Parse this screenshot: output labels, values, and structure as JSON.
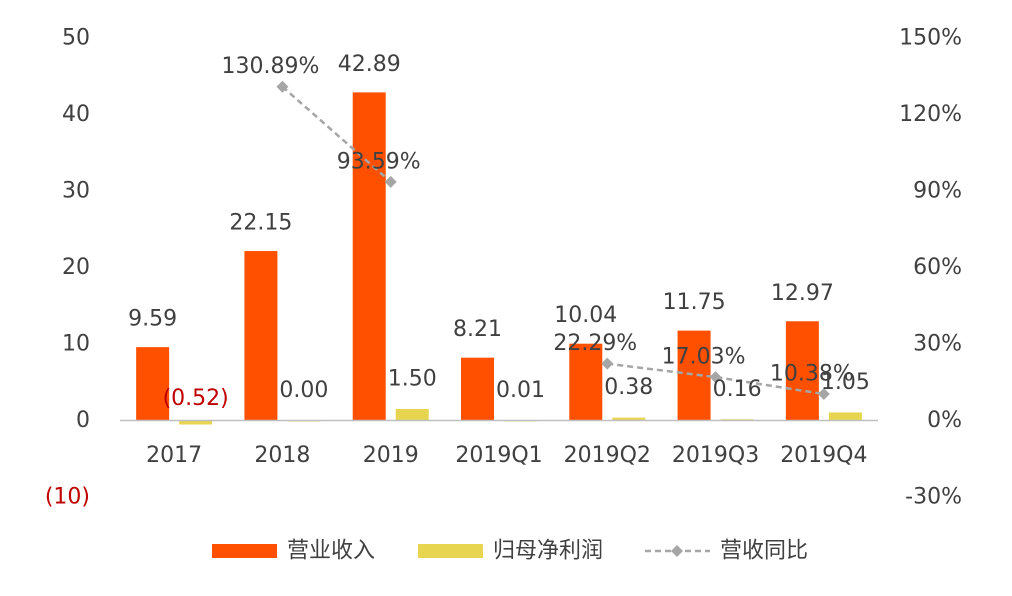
{
  "chart_data": {
    "type": "bar",
    "categories": [
      "2017",
      "2018",
      "2019",
      "2019Q1",
      "2019Q2",
      "2019Q3",
      "2019Q4"
    ],
    "series": [
      {
        "name": "营业收入",
        "axis": "left",
        "kind": "bar",
        "color": "#FF5000",
        "values": [
          9.59,
          22.15,
          42.89,
          8.21,
          10.04,
          11.75,
          12.97
        ],
        "labels": [
          "9.59",
          "22.15",
          "42.89",
          "8.21",
          "10.04",
          "11.75",
          "12.97"
        ]
      },
      {
        "name": "归母净利润",
        "axis": "left",
        "kind": "bar",
        "color": "#E8D54F",
        "values": [
          -0.52,
          0.0,
          1.5,
          0.01,
          0.38,
          0.16,
          1.05
        ],
        "labels": [
          "(0.52)",
          "0.00",
          "1.50",
          "0.01",
          "0.38",
          "0.16",
          "1.05"
        ],
        "negative_label_color": "#C00000"
      },
      {
        "name": "营收同比",
        "axis": "right",
        "kind": "line",
        "color": "#A6A6A6",
        "values": [
          null,
          130.89,
          93.59,
          null,
          22.29,
          17.03,
          10.38
        ],
        "labels": [
          null,
          "130.89%",
          "93.59%",
          null,
          "22.29%",
          "17.03%",
          "10.38%"
        ]
      }
    ],
    "y_left": {
      "range": [
        -10,
        50
      ],
      "ticks": [
        -10,
        0,
        10,
        20,
        30,
        40,
        50
      ],
      "tick_labels": [
        "(10)",
        "0",
        "10",
        "20",
        "30",
        "40",
        "50"
      ],
      "negative_color": "#C00000"
    },
    "y_right": {
      "range": [
        -30,
        150
      ],
      "ticks": [
        -30,
        0,
        30,
        60,
        90,
        120,
        150
      ],
      "tick_labels": [
        "-30%",
        "0%",
        "30%",
        "60%",
        "90%",
        "120%",
        "150%"
      ]
    },
    "grid": false,
    "legend": {
      "position": "bottom",
      "entries": [
        "营业收入",
        "归母净利润",
        "营收同比"
      ]
    }
  }
}
